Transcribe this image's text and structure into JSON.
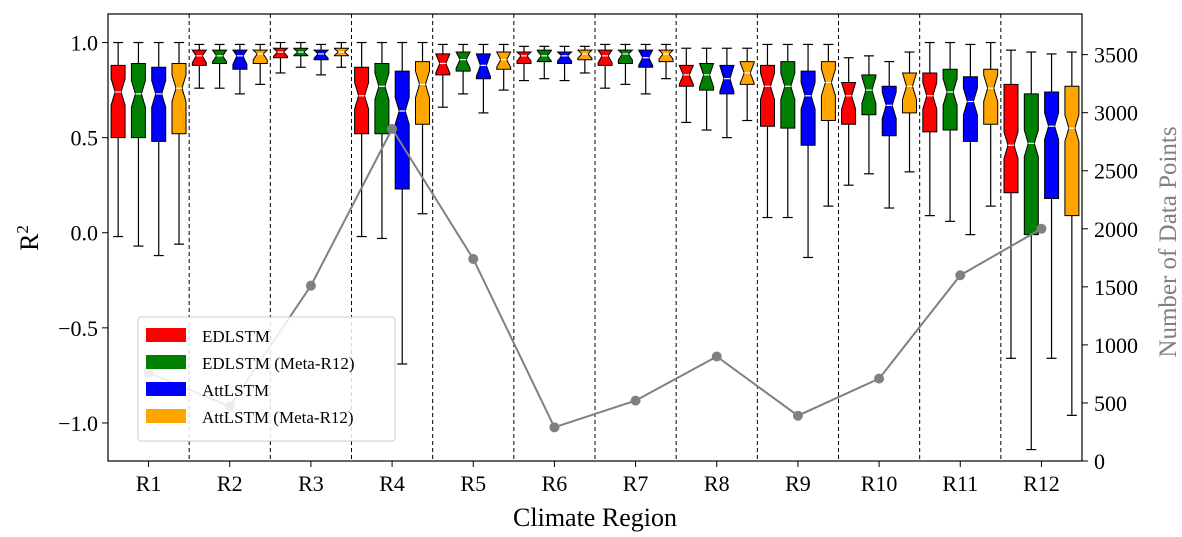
{
  "chart_data": {
    "type": "box",
    "xlabel": "Climate Region",
    "ylabel": "R",
    "ylabel_superscript": "2",
    "ylabel_right": "Number of Data Points",
    "ylim": [
      -1.2,
      1.15
    ],
    "ylim_right": [
      0,
      3850
    ],
    "yticks": [
      1.0,
      0.5,
      0.0,
      -0.5,
      -1.0
    ],
    "ytick_labels": [
      "1.0",
      "0.5",
      "0.0",
      "−0.5",
      "−1.0"
    ],
    "yticks_right": [
      0,
      500,
      1000,
      1500,
      2000,
      2500,
      3000,
      3500
    ],
    "ytick_labels_right": [
      "0",
      "500",
      "1000",
      "1500",
      "2000",
      "2500",
      "3000",
      "3500"
    ],
    "categories": [
      "R1",
      "R2",
      "R3",
      "R4",
      "R5",
      "R6",
      "R7",
      "R8",
      "R9",
      "R10",
      "R11",
      "R12"
    ],
    "grid": false,
    "legend_position": "lower-left",
    "series": [
      {
        "name": "EDLSTM",
        "color": "#ff0000",
        "boxes": [
          {
            "whislo": -0.02,
            "q1": 0.5,
            "median": 0.74,
            "q3": 0.88,
            "whishi": 1.0
          },
          {
            "whislo": 0.76,
            "q1": 0.88,
            "median": 0.93,
            "q3": 0.96,
            "whishi": 0.99
          },
          {
            "whislo": 0.84,
            "q1": 0.92,
            "median": 0.95,
            "q3": 0.97,
            "whishi": 1.0
          },
          {
            "whislo": -0.02,
            "q1": 0.52,
            "median": 0.72,
            "q3": 0.87,
            "whishi": 1.0
          },
          {
            "whislo": 0.66,
            "q1": 0.83,
            "median": 0.89,
            "q3": 0.94,
            "whishi": 0.99
          },
          {
            "whislo": 0.8,
            "q1": 0.89,
            "median": 0.93,
            "q3": 0.95,
            "whishi": 0.98
          },
          {
            "whislo": 0.76,
            "q1": 0.88,
            "median": 0.93,
            "q3": 0.96,
            "whishi": 0.99
          },
          {
            "whislo": 0.58,
            "q1": 0.77,
            "median": 0.83,
            "q3": 0.88,
            "whishi": 0.97
          },
          {
            "whislo": 0.08,
            "q1": 0.56,
            "median": 0.77,
            "q3": 0.88,
            "whishi": 0.99
          },
          {
            "whislo": 0.25,
            "q1": 0.57,
            "median": 0.72,
            "q3": 0.79,
            "whishi": 0.92
          },
          {
            "whislo": 0.09,
            "q1": 0.53,
            "median": 0.72,
            "q3": 0.84,
            "whishi": 1.0
          },
          {
            "whislo": -0.66,
            "q1": 0.21,
            "median": 0.46,
            "q3": 0.78,
            "whishi": 0.96
          }
        ]
      },
      {
        "name": "EDLSTM (Meta-R12)",
        "color": "#008000",
        "boxes": [
          {
            "whislo": -0.07,
            "q1": 0.5,
            "median": 0.73,
            "q3": 0.89,
            "whishi": 1.0
          },
          {
            "whislo": 0.76,
            "q1": 0.89,
            "median": 0.93,
            "q3": 0.96,
            "whishi": 0.99
          },
          {
            "whislo": 0.87,
            "q1": 0.93,
            "median": 0.95,
            "q3": 0.97,
            "whishi": 1.0
          },
          {
            "whislo": -0.03,
            "q1": 0.52,
            "median": 0.77,
            "q3": 0.89,
            "whishi": 1.0
          },
          {
            "whislo": 0.73,
            "q1": 0.85,
            "median": 0.91,
            "q3": 0.95,
            "whishi": 0.99
          },
          {
            "whislo": 0.81,
            "q1": 0.9,
            "median": 0.93,
            "q3": 0.96,
            "whishi": 0.98
          },
          {
            "whislo": 0.78,
            "q1": 0.89,
            "median": 0.94,
            "q3": 0.96,
            "whishi": 0.99
          },
          {
            "whislo": 0.54,
            "q1": 0.75,
            "median": 0.83,
            "q3": 0.89,
            "whishi": 0.97
          },
          {
            "whislo": 0.08,
            "q1": 0.55,
            "median": 0.77,
            "q3": 0.9,
            "whishi": 0.99
          },
          {
            "whislo": 0.31,
            "q1": 0.62,
            "median": 0.75,
            "q3": 0.83,
            "whishi": 0.93
          },
          {
            "whislo": 0.06,
            "q1": 0.54,
            "median": 0.74,
            "q3": 0.86,
            "whishi": 1.0
          },
          {
            "whislo": -1.14,
            "q1": -0.01,
            "median": 0.47,
            "q3": 0.73,
            "whishi": 0.95
          }
        ]
      },
      {
        "name": "AttLSTM",
        "color": "#0000ff",
        "boxes": [
          {
            "whislo": -0.12,
            "q1": 0.48,
            "median": 0.73,
            "q3": 0.87,
            "whishi": 1.0
          },
          {
            "whislo": 0.73,
            "q1": 0.86,
            "median": 0.93,
            "q3": 0.96,
            "whishi": 0.99
          },
          {
            "whislo": 0.83,
            "q1": 0.91,
            "median": 0.94,
            "q3": 0.96,
            "whishi": 0.99
          },
          {
            "whislo": -0.69,
            "q1": 0.23,
            "median": 0.64,
            "q3": 0.85,
            "whishi": 1.0
          },
          {
            "whislo": 0.63,
            "q1": 0.81,
            "median": 0.88,
            "q3": 0.94,
            "whishi": 0.99
          },
          {
            "whislo": 0.8,
            "q1": 0.89,
            "median": 0.93,
            "q3": 0.95,
            "whishi": 0.98
          },
          {
            "whislo": 0.73,
            "q1": 0.87,
            "median": 0.92,
            "q3": 0.96,
            "whishi": 0.99
          },
          {
            "whislo": 0.5,
            "q1": 0.73,
            "median": 0.81,
            "q3": 0.88,
            "whishi": 0.97
          },
          {
            "whislo": -0.13,
            "q1": 0.46,
            "median": 0.72,
            "q3": 0.85,
            "whishi": 0.99
          },
          {
            "whislo": 0.13,
            "q1": 0.51,
            "median": 0.67,
            "q3": 0.77,
            "whishi": 0.9
          },
          {
            "whislo": -0.01,
            "q1": 0.48,
            "median": 0.69,
            "q3": 0.82,
            "whishi": 0.99
          },
          {
            "whislo": -0.66,
            "q1": 0.18,
            "median": 0.56,
            "q3": 0.74,
            "whishi": 0.94
          }
        ]
      },
      {
        "name": "AttLSTM (Meta-R12)",
        "color": "#ffa500",
        "boxes": [
          {
            "whislo": -0.06,
            "q1": 0.52,
            "median": 0.76,
            "q3": 0.89,
            "whishi": 1.0
          },
          {
            "whislo": 0.78,
            "q1": 0.89,
            "median": 0.94,
            "q3": 0.96,
            "whishi": 0.99
          },
          {
            "whislo": 0.87,
            "q1": 0.93,
            "median": 0.95,
            "q3": 0.97,
            "whishi": 1.0
          },
          {
            "whislo": 0.1,
            "q1": 0.57,
            "median": 0.78,
            "q3": 0.9,
            "whishi": 1.0
          },
          {
            "whislo": 0.75,
            "q1": 0.86,
            "median": 0.91,
            "q3": 0.95,
            "whishi": 0.99
          },
          {
            "whislo": 0.84,
            "q1": 0.91,
            "median": 0.94,
            "q3": 0.96,
            "whishi": 0.98
          },
          {
            "whislo": 0.81,
            "q1": 0.9,
            "median": 0.94,
            "q3": 0.96,
            "whishi": 0.99
          },
          {
            "whislo": 0.59,
            "q1": 0.78,
            "median": 0.84,
            "q3": 0.9,
            "whishi": 0.97
          },
          {
            "whislo": 0.14,
            "q1": 0.59,
            "median": 0.79,
            "q3": 0.9,
            "whishi": 0.99
          },
          {
            "whislo": 0.32,
            "q1": 0.63,
            "median": 0.77,
            "q3": 0.84,
            "whishi": 0.95
          },
          {
            "whislo": 0.14,
            "q1": 0.57,
            "median": 0.76,
            "q3": 0.86,
            "whishi": 1.0
          },
          {
            "whislo": -0.96,
            "q1": 0.09,
            "median": 0.55,
            "q3": 0.77,
            "whishi": 0.95
          }
        ]
      }
    ],
    "line_series": {
      "name": "Number of Data Points",
      "axis": "right",
      "color": "#808080",
      "values": [
        760,
        470,
        1510,
        2860,
        1740,
        290,
        520,
        900,
        390,
        710,
        1600,
        2000
      ]
    }
  }
}
